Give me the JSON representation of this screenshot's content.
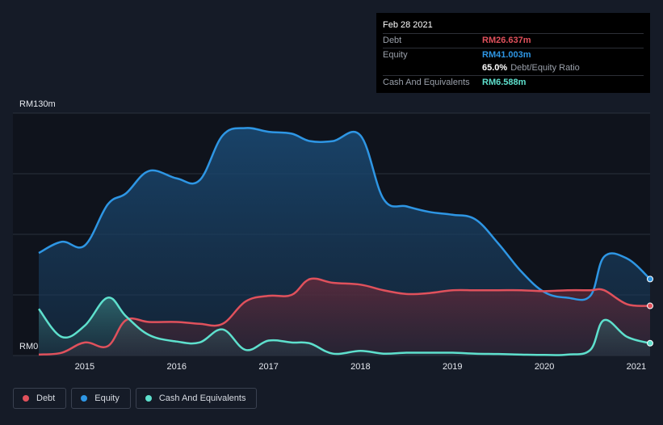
{
  "chart_data": {
    "type": "area",
    "ylabel_top": "RM130m",
    "ylabel_bottom": "RM0",
    "ylim": [
      0,
      130
    ],
    "xlim": [
      2014.5,
      2021.15
    ],
    "x_ticks": [
      {
        "x": 2015,
        "label": "2015"
      },
      {
        "x": 2016,
        "label": "2016"
      },
      {
        "x": 2017,
        "label": "2017"
      },
      {
        "x": 2018,
        "label": "2018"
      },
      {
        "x": 2019,
        "label": "2019"
      },
      {
        "x": 2020,
        "label": "2020"
      },
      {
        "x": 2021,
        "label": "2021"
      }
    ],
    "grid": true,
    "legend_position": "bottom-left",
    "series": [
      {
        "name": "Debt",
        "color": "#e0515c",
        "x": [
          2014.5,
          2014.75,
          2015.0,
          2015.25,
          2015.45,
          2015.7,
          2016.0,
          2016.25,
          2016.5,
          2016.75,
          2017.0,
          2017.25,
          2017.45,
          2017.7,
          2018.0,
          2018.25,
          2018.5,
          2018.75,
          2019.0,
          2019.25,
          2019.5,
          2019.75,
          2020.0,
          2020.25,
          2020.5,
          2020.65,
          2020.9,
          2021.15
        ],
        "y": [
          0.5,
          1.5,
          7.0,
          5.0,
          19.0,
          18.0,
          18.0,
          17.0,
          17.0,
          29.0,
          32.0,
          32.5,
          41.0,
          39.0,
          38.0,
          35.0,
          33.0,
          33.5,
          35.0,
          35.0,
          35.0,
          35.0,
          34.5,
          35.0,
          35.0,
          35.0,
          27.5,
          26.637
        ]
      },
      {
        "name": "Equity",
        "color": "#2e96e4",
        "x": [
          2014.5,
          2014.75,
          2015.0,
          2015.25,
          2015.45,
          2015.7,
          2016.0,
          2016.25,
          2016.5,
          2016.75,
          2017.0,
          2017.25,
          2017.45,
          2017.7,
          2018.0,
          2018.25,
          2018.5,
          2018.75,
          2019.0,
          2019.25,
          2019.5,
          2019.75,
          2020.0,
          2020.25,
          2020.5,
          2020.65,
          2020.9,
          2021.15
        ],
        "y": [
          55.0,
          61.0,
          59.0,
          81.0,
          87.0,
          99.0,
          95.0,
          94.0,
          118.0,
          122.0,
          120.0,
          119.0,
          115.0,
          115.0,
          118.0,
          84.0,
          80.0,
          77.0,
          75.5,
          73.0,
          60.0,
          45.0,
          34.0,
          31.0,
          32.0,
          53.0,
          52.0,
          41.003
        ]
      },
      {
        "name": "Cash And Equivalents",
        "color": "#5ee0cd",
        "x": [
          2014.5,
          2014.75,
          2015.0,
          2015.25,
          2015.45,
          2015.7,
          2016.0,
          2016.25,
          2016.5,
          2016.75,
          2017.0,
          2017.25,
          2017.45,
          2017.7,
          2018.0,
          2018.25,
          2018.5,
          2018.75,
          2019.0,
          2019.25,
          2019.5,
          2019.75,
          2020.0,
          2020.25,
          2020.5,
          2020.65,
          2020.9,
          2021.15
        ],
        "y": [
          25.0,
          10.0,
          16.0,
          31.0,
          21.0,
          11.0,
          7.5,
          7.0,
          14.0,
          3.0,
          8.0,
          7.0,
          6.5,
          1.0,
          2.5,
          1.0,
          1.5,
          1.5,
          1.5,
          1.0,
          0.8,
          0.5,
          0.3,
          0.5,
          3.0,
          19.0,
          10.0,
          6.588
        ]
      }
    ]
  },
  "tooltip": {
    "date": "Feb 28 2021",
    "debt_label": "Debt",
    "debt_value": "RM26.637m",
    "equity_label": "Equity",
    "equity_value": "RM41.003m",
    "ratio_value": "65.0%",
    "ratio_label": "Debt/Equity Ratio",
    "cash_label": "Cash And Equivalents",
    "cash_value": "RM6.588m"
  },
  "legend": {
    "debt": "Debt",
    "equity": "Equity",
    "cash": "Cash And Equivalents"
  },
  "colors": {
    "background": "#151b27",
    "plot_background": "#0f131c",
    "debt": "#e0515c",
    "equity": "#2e96e4",
    "cash": "#5ee0cd"
  }
}
